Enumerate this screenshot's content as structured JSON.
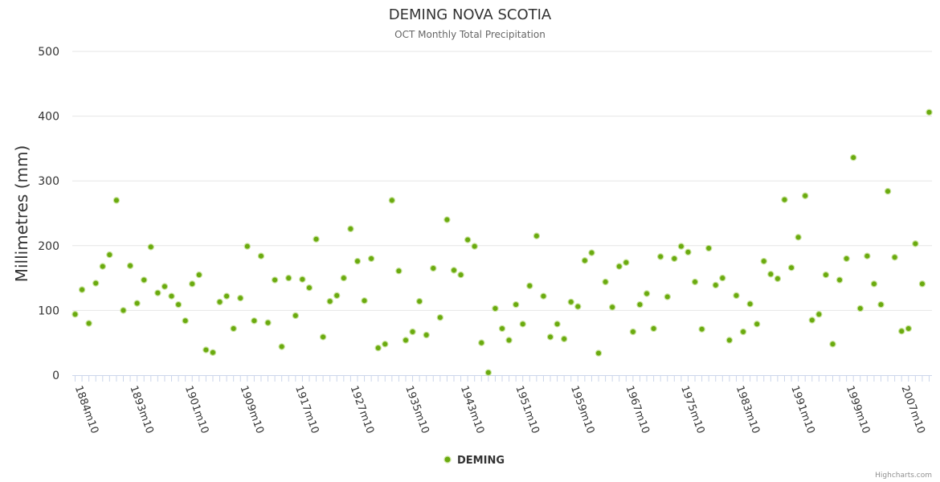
{
  "chart_data": {
    "type": "scatter",
    "title": "DEMING NOVA SCOTIA",
    "subtitle": "OCT Monthly Total Precipitation",
    "xlabel": "",
    "ylabel": "Millimetres (mm)",
    "ylim": [
      0,
      500
    ],
    "yticks": [
      0,
      100,
      200,
      300,
      400,
      500
    ],
    "grid": true,
    "legend_position": "bottom-center",
    "tick_labels": [
      "1884m10",
      "1893m10",
      "1901m10",
      "1909m10",
      "1917m10",
      "1927m10",
      "1935m10",
      "1943m10",
      "1951m10",
      "1959m10",
      "1967m10",
      "1975m10",
      "1983m10",
      "1991m10",
      "1999m10",
      "2007m10"
    ],
    "tick_indices": [
      0,
      8,
      16,
      24,
      32,
      40,
      48,
      56,
      64,
      72,
      80,
      88,
      96,
      104,
      112,
      120
    ],
    "x": [
      "1884m10",
      "1885m10",
      "1886m10",
      "1887m10",
      "1888m10",
      "1889m10",
      "1890m10",
      "1891m10",
      "1893m10",
      "1894m10",
      "1895m10",
      "1896m10",
      "1897m10",
      "1898m10",
      "1899m10",
      "1900m10",
      "1901m10",
      "1902m10",
      "1903m10",
      "1904m10",
      "1905m10",
      "1906m10",
      "1907m10",
      "1908m10",
      "1909m10",
      "1910m10",
      "1911m10",
      "1912m10",
      "1913m10",
      "1914m10",
      "1915m10",
      "1916m10",
      "1917m10",
      "1918m10",
      "1919m10",
      "1920m10",
      "1921m10",
      "1922m10",
      "1923m10",
      "1924m10",
      "1927m10",
      "1928m10",
      "1929m10",
      "1930m10",
      "1931m10",
      "1932m10",
      "1933m10",
      "1934m10",
      "1935m10",
      "1936m10",
      "1937m10",
      "1938m10",
      "1939m10",
      "1940m10",
      "1941m10",
      "1942m10",
      "1943m10",
      "1944m10",
      "1945m10",
      "1946m10",
      "1947m10",
      "1948m10",
      "1949m10",
      "1950m10",
      "1951m10",
      "1952m10",
      "1953m10",
      "1954m10",
      "1955m10",
      "1956m10",
      "1957m10",
      "1958m10",
      "1959m10",
      "1960m10",
      "1961m10",
      "1962m10",
      "1963m10",
      "1964m10",
      "1965m10",
      "1966m10",
      "1967m10",
      "1968m10",
      "1969m10",
      "1970m10",
      "1971m10",
      "1972m10",
      "1973m10",
      "1974m10",
      "1975m10",
      "1976m10",
      "1977m10",
      "1978m10",
      "1979m10",
      "1980m10",
      "1981m10",
      "1982m10",
      "1983m10",
      "1984m10",
      "1985m10",
      "1986m10",
      "1987m10",
      "1988m10",
      "1989m10",
      "1990m10",
      "1991m10",
      "1992m10",
      "1993m10",
      "1994m10",
      "1995m10",
      "1996m10",
      "1997m10",
      "1998m10",
      "1999m10",
      "2000m10",
      "2001m10",
      "2002m10",
      "2003m10",
      "2004m10",
      "2005m10",
      "2006m10",
      "2007m10",
      "2008m10",
      "2009m10",
      "2010m10",
      "2011m10"
    ],
    "series": [
      {
        "name": "DEMING",
        "color": "#6aaa0f",
        "values": [
          94,
          132,
          80,
          142,
          168,
          186,
          270,
          100,
          169,
          111,
          147,
          198,
          127,
          137,
          122,
          109,
          84,
          141,
          155,
          39,
          35,
          113,
          122,
          72,
          119,
          199,
          84,
          184,
          81,
          147,
          44,
          150,
          92,
          148,
          135,
          210,
          59,
          114,
          123,
          150,
          226,
          176,
          115,
          180,
          42,
          48,
          270,
          161,
          54,
          67,
          114,
          62,
          165,
          89,
          240,
          162,
          155,
          209,
          199,
          50,
          4,
          103,
          72,
          54,
          109,
          79,
          138,
          215,
          122,
          59,
          79,
          56,
          113,
          106,
          177,
          189,
          34,
          144,
          105,
          168,
          174,
          67,
          109,
          126,
          72,
          183,
          121,
          180,
          199,
          190,
          144,
          71,
          196,
          139,
          150,
          54,
          123,
          67,
          110,
          79,
          176,
          156,
          149,
          271,
          166,
          213,
          277,
          85,
          94,
          155,
          48,
          147,
          180,
          336,
          103,
          184,
          141,
          109,
          284,
          182,
          68,
          72,
          203,
          141,
          406
        ]
      }
    ]
  },
  "credits": "Highcharts.com"
}
